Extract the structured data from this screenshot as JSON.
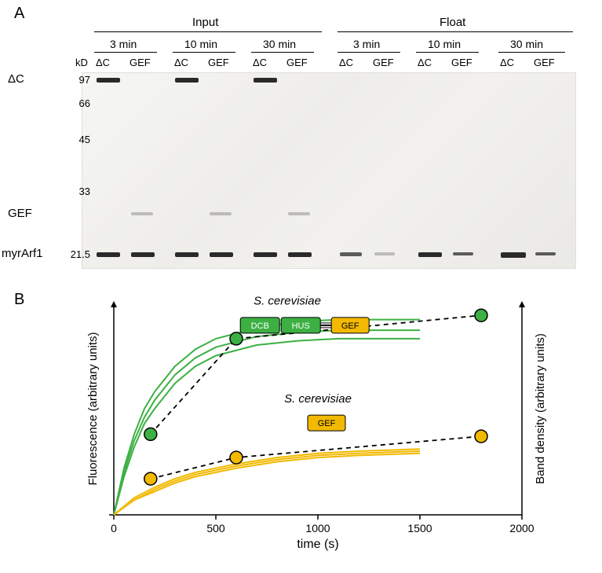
{
  "panelA": {
    "label": "A",
    "groups": [
      "Input",
      "Float"
    ],
    "times": [
      "3 min",
      "10 min",
      "30 min"
    ],
    "lane_types": [
      "ΔC",
      "GEF"
    ],
    "kD_header": "kD",
    "mw_markers": [
      97,
      66,
      45,
      33,
      21.5
    ],
    "row_labels": [
      "ΔC",
      "GEF",
      "myrArf1"
    ],
    "gel_bg": "#f0efeb"
  },
  "panelB": {
    "label": "B",
    "x_label": "time (s)",
    "y_left_label": "Fluorescence (arbitrary units)",
    "y_right_label": "Band density (arbitrary units)",
    "species": "S. cerevisiae",
    "xlim": [
      0,
      2000
    ],
    "xticks": [
      0,
      500,
      1000,
      1500,
      2000
    ],
    "ylim": [
      0,
      1.0
    ],
    "colors": {
      "green": "#3cb043",
      "yellow": "#f2b900",
      "axis": "#000000",
      "dash": "#000000"
    },
    "domain_dcb": {
      "label": "DCB",
      "fill": "#3cb043"
    },
    "domain_hus": {
      "label": "HUS",
      "fill": "#3cb043"
    },
    "domain_gef": {
      "label": "GEF",
      "fill": "#f2b900"
    },
    "green_curves": [
      [
        [
          0,
          0
        ],
        [
          50,
          0.22
        ],
        [
          100,
          0.38
        ],
        [
          150,
          0.5
        ],
        [
          200,
          0.58
        ],
        [
          300,
          0.7
        ],
        [
          400,
          0.78
        ],
        [
          500,
          0.83
        ],
        [
          700,
          0.88
        ],
        [
          900,
          0.91
        ],
        [
          1100,
          0.92
        ],
        [
          1300,
          0.92
        ],
        [
          1500,
          0.92
        ]
      ],
      [
        [
          0,
          0
        ],
        [
          50,
          0.2
        ],
        [
          100,
          0.35
        ],
        [
          150,
          0.46
        ],
        [
          200,
          0.54
        ],
        [
          300,
          0.66
        ],
        [
          400,
          0.74
        ],
        [
          500,
          0.79
        ],
        [
          700,
          0.84
        ],
        [
          900,
          0.86
        ],
        [
          1100,
          0.87
        ],
        [
          1300,
          0.87
        ],
        [
          1500,
          0.87
        ]
      ],
      [
        [
          0,
          0
        ],
        [
          50,
          0.18
        ],
        [
          100,
          0.32
        ],
        [
          150,
          0.43
        ],
        [
          200,
          0.5
        ],
        [
          300,
          0.62
        ],
        [
          400,
          0.7
        ],
        [
          500,
          0.75
        ],
        [
          700,
          0.8
        ],
        [
          900,
          0.82
        ],
        [
          1100,
          0.83
        ],
        [
          1300,
          0.83
        ],
        [
          1500,
          0.83
        ]
      ]
    ],
    "yellow_curves": [
      [
        [
          0,
          0
        ],
        [
          100,
          0.08
        ],
        [
          200,
          0.13
        ],
        [
          300,
          0.17
        ],
        [
          400,
          0.2
        ],
        [
          600,
          0.24
        ],
        [
          800,
          0.27
        ],
        [
          1000,
          0.29
        ],
        [
          1200,
          0.3
        ],
        [
          1500,
          0.31
        ]
      ],
      [
        [
          0,
          0
        ],
        [
          100,
          0.07
        ],
        [
          200,
          0.12
        ],
        [
          300,
          0.16
        ],
        [
          400,
          0.19
        ],
        [
          600,
          0.23
        ],
        [
          800,
          0.26
        ],
        [
          1000,
          0.28
        ],
        [
          1200,
          0.29
        ],
        [
          1500,
          0.3
        ]
      ],
      [
        [
          0,
          0
        ],
        [
          100,
          0.07
        ],
        [
          200,
          0.11
        ],
        [
          300,
          0.15
        ],
        [
          400,
          0.18
        ],
        [
          600,
          0.22
        ],
        [
          800,
          0.25
        ],
        [
          1000,
          0.27
        ],
        [
          1200,
          0.28
        ],
        [
          1500,
          0.29
        ]
      ]
    ],
    "green_points": [
      [
        180,
        0.38
      ],
      [
        600,
        0.83
      ],
      [
        1800,
        0.94
      ]
    ],
    "yellow_points": [
      [
        180,
        0.17
      ],
      [
        600,
        0.27
      ],
      [
        1800,
        0.37
      ]
    ],
    "marker_radius": 8,
    "line_width": 2,
    "axis_width": 1.5
  }
}
